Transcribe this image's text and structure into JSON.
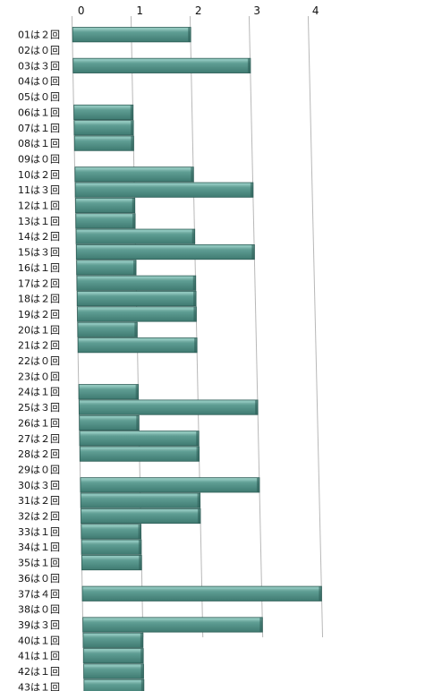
{
  "chart_data": {
    "type": "bar",
    "orientation": "horizontal",
    "categories": [
      "01は２回",
      "02は０回",
      "03は３回",
      "04は０回",
      "05は０回",
      "06は１回",
      "07は１回",
      "08は１回",
      "09は０回",
      "10は２回",
      "11は３回",
      "12は１回",
      "13は１回",
      "14は２回",
      "15は３回",
      "16は１回",
      "17は２回",
      "18は２回",
      "19は２回",
      "20は１回",
      "21は２回",
      "22は０回",
      "23は０回",
      "24は１回",
      "25は３回",
      "26は１回",
      "27は２回",
      "28は２回",
      "29は０回",
      "30は３回",
      "31は２回",
      "32は２回",
      "33は１回",
      "34は１回",
      "35は１回",
      "36は０回",
      "37は４回",
      "38は０回",
      "39は３回",
      "40は１回",
      "41は１回",
      "42は１回",
      "43は１回"
    ],
    "values": [
      2,
      0,
      3,
      0,
      0,
      1,
      1,
      1,
      0,
      2,
      3,
      1,
      1,
      2,
      3,
      1,
      2,
      2,
      2,
      1,
      2,
      0,
      0,
      1,
      3,
      1,
      2,
      2,
      0,
      3,
      2,
      2,
      1,
      1,
      1,
      0,
      4,
      0,
      3,
      1,
      1,
      1,
      1
    ],
    "x_ticks": [
      "0",
      "1",
      "2",
      "3",
      "4"
    ],
    "xlim": [
      0,
      4
    ],
    "grid": true,
    "colors": {
      "bar": "#5a9a90",
      "bar_top": "#8cc4bb",
      "bar_dark": "#2f5f58",
      "grid": "#b8b8b8"
    }
  }
}
